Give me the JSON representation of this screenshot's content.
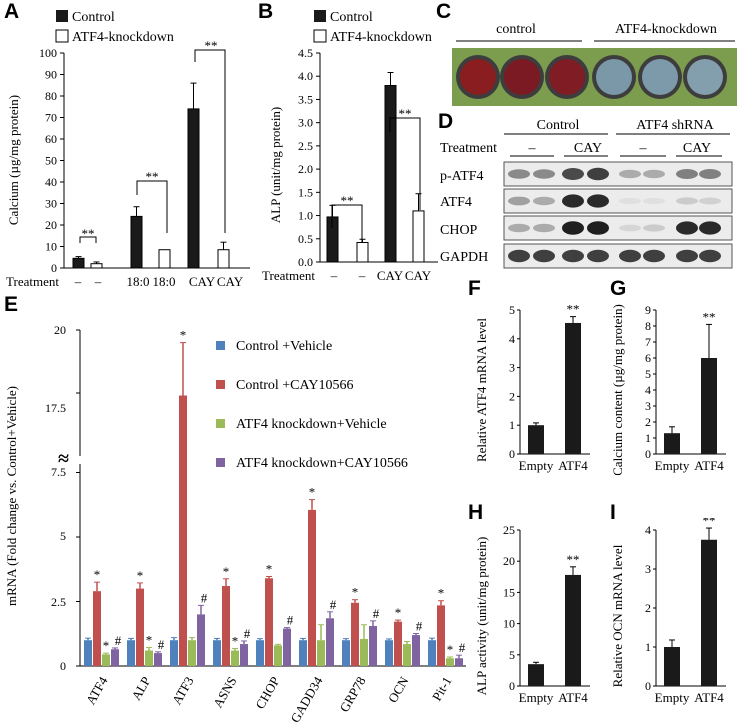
{
  "panels": {
    "A": {
      "letter": "A",
      "legend": [
        "Control",
        "ATF4-knockdown"
      ],
      "ylabel": "Calcium (µg/mg protein)",
      "treatment_label": "Treatment",
      "treatment_ticks": [
        "–",
        "–",
        "18:0",
        "18:0",
        "CAY",
        "CAY"
      ],
      "sig": [
        "**",
        "**",
        "**"
      ]
    },
    "B": {
      "letter": "B",
      "legend": [
        "Control",
        "ATF4-knockdown"
      ],
      "ylabel": "ALP (unit/mg protein)",
      "treatment_label": "Treatment",
      "treatment_ticks": [
        "–",
        "–",
        "CAY",
        "CAY"
      ],
      "sig": [
        "**",
        "**"
      ]
    },
    "C": {
      "letter": "C",
      "groups": [
        "control",
        "ATF4-knockdown"
      ],
      "well_colors": [
        "#8a1d1f",
        "#7b1a22",
        "#7f1c24",
        "#7a98a8",
        "#7d9aab",
        "#839fae"
      ]
    },
    "D": {
      "letter": "D",
      "groups": [
        "Control",
        "ATF4 shRNA"
      ],
      "treatment_label": "Treatment",
      "lane_labels": [
        "–",
        "CAY",
        "–",
        "CAY"
      ],
      "rows": [
        "p-ATF4",
        "ATF4",
        "CHOP",
        "GAPDH"
      ]
    },
    "E": {
      "letter": "E",
      "ylabel": "mRNA (Fold change vs. Control+Vehicle)",
      "break_mark": "≈",
      "ytick_labels_low": [
        "0",
        "2.5",
        "5",
        "7.5"
      ],
      "ytick_labels_high": [
        "17.5",
        "20"
      ]
    },
    "F": {
      "letter": "F",
      "ylabel": "Relative ATF4 mRNA level",
      "sig": "**"
    },
    "G": {
      "letter": "G",
      "ylabel": "Calcium content (µg/mg protein)",
      "sig": "**"
    },
    "H": {
      "letter": "H",
      "ylabel": "ALP activity (unit/mg protein)",
      "sig": "**"
    },
    "I": {
      "letter": "I",
      "ylabel": "Relative OCN mRNA level",
      "sig": "**"
    }
  },
  "chart_data": [
    {
      "panel": "A",
      "type": "bar",
      "ylabel": "Calcium (µg/mg protein)",
      "ylim": [
        0,
        100
      ],
      "yticks": [
        0,
        10,
        20,
        30,
        40,
        50,
        60,
        70,
        80,
        90,
        100
      ],
      "categories": [
        "–",
        "18:0",
        "CAY"
      ],
      "series": [
        {
          "name": "Control",
          "color": "#1a1a1a",
          "values": [
            4.5,
            24,
            74
          ],
          "errors": [
            0.8,
            4.5,
            12
          ]
        },
        {
          "name": "ATF4-knockdown",
          "color": "#ffffff",
          "values": [
            2,
            8.5,
            8.5
          ],
          "errors": [
            0.8,
            0,
            3.5
          ]
        }
      ]
    },
    {
      "panel": "B",
      "type": "bar",
      "ylabel": "ALP (unit/mg protein)",
      "ylim": [
        0,
        4.5
      ],
      "yticks": [
        "0.0",
        "0.5",
        "1.0",
        "1.5",
        "2.0",
        "2.5",
        "3.0",
        "3.5",
        "4.0",
        "4.5"
      ],
      "categories": [
        "–",
        "CAY"
      ],
      "series": [
        {
          "name": "Control",
          "color": "#1a1a1a",
          "values": [
            0.97,
            3.8
          ],
          "errors": [
            0.25,
            0.28
          ]
        },
        {
          "name": "ATF4-knockdown",
          "color": "#ffffff",
          "values": [
            0.42,
            1.1
          ],
          "errors": [
            0.07,
            0.37
          ]
        }
      ]
    },
    {
      "panel": "E",
      "type": "bar",
      "ylabel": "mRNA (Fold change vs. Control+Vehicle)",
      "categories": [
        "ATF4",
        "ALP",
        "ATF3",
        "ASNS",
        "CHOP",
        "GADD34",
        "GRP78",
        "OCN",
        "Pit-1"
      ],
      "series": [
        {
          "name": "Control +Vehicle",
          "color": "#4f81bd",
          "values": [
            1,
            1,
            1,
            1,
            1,
            1,
            1,
            1,
            1
          ],
          "errors": [
            0.08,
            0.07,
            0.1,
            0.07,
            0.06,
            0.07,
            0.06,
            0.05,
            0.08
          ],
          "marks": [
            "",
            "",
            "",
            "",
            "",
            "",
            "",
            "",
            ""
          ]
        },
        {
          "name": "Control +CAY10566",
          "color": "#c0504d",
          "values": [
            2.9,
            3.0,
            17.4,
            3.1,
            3.4,
            6.05,
            2.45,
            1.72,
            2.35
          ],
          "errors": [
            0.35,
            0.22,
            2.1,
            0.28,
            0.07,
            0.4,
            0.12,
            0.06,
            0.18
          ],
          "marks": [
            "*",
            "*",
            "*",
            "*",
            "*",
            "*",
            "*",
            "*",
            "*"
          ]
        },
        {
          "name": " ATF4 knockdown+Vehicle",
          "color": "#9bbb59",
          "values": [
            0.45,
            0.6,
            1.0,
            0.6,
            0.8,
            1.0,
            1.05,
            0.85,
            0.3
          ],
          "errors": [
            0.05,
            0.12,
            0.1,
            0.08,
            0.04,
            0.6,
            0.55,
            0.1,
            0.05
          ],
          "marks": [
            "*",
            "*",
            "",
            "*",
            "",
            "",
            "",
            "",
            "*"
          ]
        },
        {
          "name": "ATF4 knockdown+CAY10566",
          "color": "#8064a2",
          "values": [
            0.65,
            0.5,
            2.0,
            0.85,
            1.45,
            1.85,
            1.55,
            1.2,
            0.3
          ],
          "errors": [
            0.05,
            0.05,
            0.35,
            0.12,
            0.04,
            0.25,
            0.2,
            0.06,
            0.12
          ],
          "marks": [
            "#",
            "#",
            "#",
            "#",
            "#",
            "#",
            "#",
            "#",
            "#"
          ]
        }
      ]
    },
    {
      "panel": "F",
      "type": "bar",
      "ylabel": "Relative ATF4 mRNA level",
      "ylim": [
        0,
        5
      ],
      "yticks": [
        "0",
        "1",
        "2",
        "3",
        "4",
        "5"
      ],
      "categories": [
        "Empty",
        "ATF4"
      ],
      "values": [
        1.0,
        4.55
      ],
      "errors": [
        0.08,
        0.22
      ]
    },
    {
      "panel": "G",
      "type": "bar",
      "ylabel": "Calcium content (µg/mg protein)",
      "ylim": [
        0,
        9
      ],
      "yticks": [
        "0",
        "1",
        "2",
        "3",
        "4",
        "5",
        "6",
        "7",
        "8",
        "9"
      ],
      "categories": [
        "Empty",
        "ATF4"
      ],
      "values": [
        1.3,
        6.0
      ],
      "errors": [
        0.4,
        2.1
      ]
    },
    {
      "panel": "H",
      "type": "bar",
      "ylabel": "ALP activity (unit/mg protein)",
      "ylim": [
        0,
        25
      ],
      "yticks": [
        "0",
        "5",
        "10",
        "15",
        "20",
        "25"
      ],
      "categories": [
        "Empty",
        "ATF4"
      ],
      "values": [
        3.5,
        17.8
      ],
      "errors": [
        0.3,
        1.3
      ]
    },
    {
      "panel": "I",
      "type": "bar",
      "ylabel": "Relative OCN mRNA level",
      "ylim": [
        0,
        4
      ],
      "yticks": [
        "0",
        "1",
        "2",
        "3",
        "4"
      ],
      "categories": [
        "Empty",
        "ATF4"
      ],
      "values": [
        1.0,
        3.75
      ],
      "errors": [
        0.18,
        0.3
      ]
    }
  ]
}
